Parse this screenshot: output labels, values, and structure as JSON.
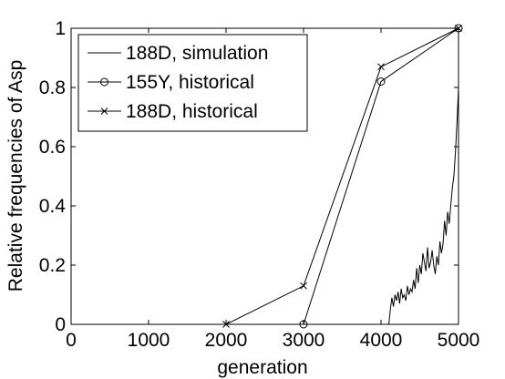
{
  "chart_data": {
    "type": "line",
    "xlabel": "generation",
    "ylabel": "Relative frequencies of Asp",
    "xlim": [
      0,
      5000
    ],
    "ylim": [
      0,
      1
    ],
    "x_ticks": [
      0,
      1000,
      2000,
      3000,
      4000,
      5000
    ],
    "x_tick_labels": [
      "0",
      "1000",
      "2000",
      "3000",
      "4000",
      "5000"
    ],
    "y_ticks": [
      0,
      0.2,
      0.4,
      0.6,
      0.8,
      1
    ],
    "y_tick_labels": [
      "0",
      "0.2",
      "0.4",
      "0.6",
      "0.8",
      "1"
    ],
    "grid": false,
    "legend_position": "top-left",
    "series": [
      {
        "name": "188D, simulation",
        "marker": "none",
        "color": "#000000",
        "x": [
          4100,
          4120,
          4140,
          4160,
          4180,
          4200,
          4220,
          4240,
          4260,
          4280,
          4300,
          4320,
          4340,
          4360,
          4380,
          4400,
          4420,
          4440,
          4460,
          4480,
          4500,
          4520,
          4540,
          4560,
          4580,
          4600,
          4620,
          4640,
          4660,
          4680,
          4700,
          4720,
          4740,
          4760,
          4780,
          4800,
          4820,
          4840,
          4860,
          4880,
          4900,
          4920,
          4940,
          4960,
          4980,
          5000
        ],
        "y": [
          0.0,
          0.05,
          0.09,
          0.06,
          0.1,
          0.08,
          0.11,
          0.07,
          0.12,
          0.09,
          0.1,
          0.08,
          0.13,
          0.1,
          0.12,
          0.11,
          0.15,
          0.12,
          0.19,
          0.14,
          0.2,
          0.17,
          0.24,
          0.21,
          0.18,
          0.26,
          0.19,
          0.21,
          0.25,
          0.2,
          0.17,
          0.23,
          0.2,
          0.28,
          0.24,
          0.27,
          0.35,
          0.3,
          0.38,
          0.34,
          0.4,
          0.46,
          0.5,
          0.58,
          0.68,
          0.8
        ]
      },
      {
        "name": "155Y, historical",
        "marker": "circle",
        "color": "#000000",
        "x": [
          3000,
          4000,
          5000
        ],
        "y": [
          0.0,
          0.82,
          1.0
        ]
      },
      {
        "name": "188D, historical",
        "marker": "x",
        "color": "#000000",
        "x": [
          2000,
          3000,
          4000,
          5000
        ],
        "y": [
          0.0,
          0.13,
          0.87,
          1.0
        ]
      }
    ]
  }
}
